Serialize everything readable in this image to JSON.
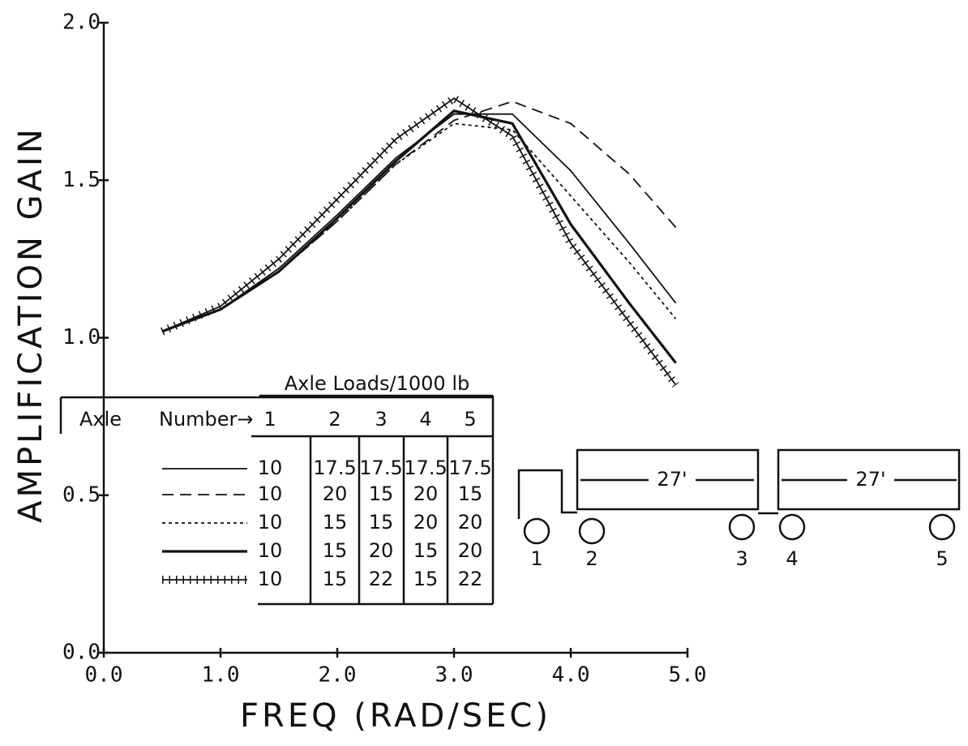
{
  "chart_data": {
    "type": "line",
    "xlabel": "FREQ (RAD/SEC)",
    "ylabel": "AMPLIFICATION GAIN",
    "x": [
      0.5,
      1.0,
      1.5,
      2.0,
      2.5,
      3.0,
      3.5,
      4.0,
      4.5,
      4.9
    ],
    "series": [
      {
        "linestyle": "solid",
        "color": "#111",
        "values": [
          1.02,
          1.09,
          1.22,
          1.39,
          1.57,
          1.71,
          1.71,
          1.53,
          1.3,
          1.11
        ]
      },
      {
        "linestyle": "dashed",
        "color": "#111",
        "values": [
          1.02,
          1.09,
          1.21,
          1.37,
          1.55,
          1.69,
          1.75,
          1.68,
          1.52,
          1.35
        ]
      },
      {
        "linestyle": "dotted",
        "color": "#111",
        "values": [
          1.02,
          1.09,
          1.21,
          1.37,
          1.55,
          1.68,
          1.66,
          1.45,
          1.24,
          1.06
        ]
      },
      {
        "linestyle": "thick",
        "color": "#111",
        "values": [
          1.02,
          1.09,
          1.21,
          1.38,
          1.56,
          1.72,
          1.68,
          1.36,
          1.11,
          0.92
        ]
      },
      {
        "linestyle": "cross",
        "color": "#111",
        "values": [
          1.02,
          1.1,
          1.25,
          1.44,
          1.63,
          1.76,
          1.64,
          1.3,
          1.05,
          0.85
        ]
      }
    ],
    "xlim": [
      0,
      5
    ],
    "ylim": [
      0,
      2
    ],
    "xticks": [
      {
        "value": 0,
        "label": "0.0"
      },
      {
        "value": 1,
        "label": "1.0"
      },
      {
        "value": 2,
        "label": "2.0"
      },
      {
        "value": 3,
        "label": "3.0"
      },
      {
        "value": 4,
        "label": "4.0"
      },
      {
        "value": 5,
        "label": "5.0"
      }
    ],
    "yticks": [
      {
        "value": 0,
        "label": "0.0"
      },
      0.5,
      {
        "value": 1,
        "label": "1.0"
      },
      1.5,
      {
        "value": 2,
        "label": "2.0"
      }
    ],
    "legend_table": {
      "title": "Axle Loads/1000 lb",
      "header": [
        "Axle",
        "Number→"
      ],
      "columns": [
        "1",
        "2",
        "3",
        "4",
        "5"
      ],
      "rows": [
        [
          "10",
          "17.5",
          "17.5",
          "17.5",
          "17.5"
        ],
        [
          "10",
          "20",
          "15",
          "20",
          "15"
        ],
        [
          "10",
          "15",
          "15",
          "20",
          "20"
        ],
        [
          "10",
          "15",
          "20",
          "15",
          "20"
        ],
        [
          "10",
          "15",
          "22",
          "15",
          "22"
        ]
      ]
    },
    "diagram": {
      "lengths": [
        "27'",
        "27'"
      ],
      "axles": [
        "1",
        "2",
        "3",
        "4",
        "5"
      ]
    }
  }
}
